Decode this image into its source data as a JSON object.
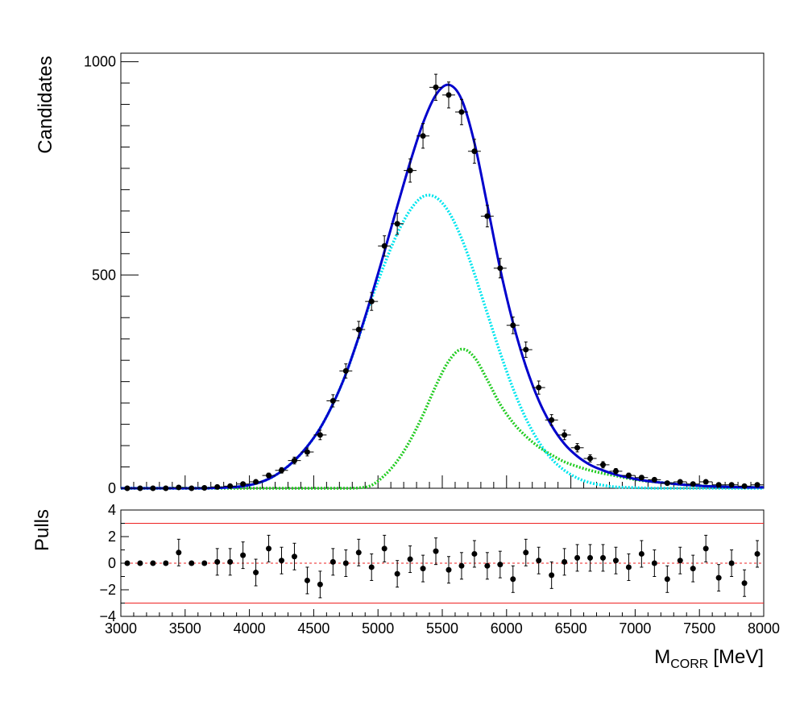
{
  "chart_data": [
    {
      "type": "scatter",
      "panel": "main",
      "ylabel": "Candidates",
      "xlim": [
        3000,
        8000
      ],
      "ylim": [
        0,
        1020
      ],
      "y_ticks": [
        0,
        500,
        1000
      ],
      "bin_width": 100,
      "x": [
        3050,
        3150,
        3250,
        3350,
        3450,
        3550,
        3650,
        3750,
        3850,
        3950,
        4050,
        4150,
        4250,
        4350,
        4450,
        4550,
        4650,
        4750,
        4850,
        4950,
        5050,
        5150,
        5250,
        5350,
        5450,
        5550,
        5650,
        5750,
        5850,
        5950,
        6050,
        6150,
        6250,
        6350,
        6450,
        6550,
        6650,
        6750,
        6850,
        6950,
        7050,
        7150,
        7250,
        7350,
        7450,
        7550,
        7650,
        7750,
        7850,
        7950
      ],
      "series": [
        {
          "name": "",
          "color": "#000000",
          "kind": "points_with_errors",
          "values": [
            0,
            0,
            0,
            0,
            2,
            0,
            1,
            3,
            5,
            10,
            15,
            30,
            42,
            65,
            85,
            125,
            205,
            275,
            372,
            438,
            568,
            620,
            745,
            826,
            940,
            922,
            882,
            790,
            638,
            516,
            382,
            325,
            236,
            160,
            125,
            95,
            70,
            55,
            40,
            30,
            25,
            20,
            12,
            15,
            10,
            15,
            8,
            8,
            5,
            8
          ]
        },
        {
          "name": "",
          "color": "#0000cc",
          "kind": "total_fit_curve",
          "values": [
            0,
            0,
            0,
            0,
            0,
            0,
            0,
            1,
            2,
            5,
            11,
            22,
            40,
            65,
            98,
            141,
            198,
            268,
            355,
            451,
            555,
            661,
            764,
            856,
            922,
            946,
            912,
            810,
            664,
            515,
            388,
            286,
            206,
            147,
            104,
            75,
            55,
            42,
            32,
            25,
            19,
            15,
            12,
            9,
            7,
            5,
            4,
            3,
            2,
            2
          ]
        },
        {
          "name": "",
          "color": "#00e5ee",
          "kind": "component_curve",
          "values": [
            0,
            0,
            0,
            0,
            0,
            0,
            0,
            1,
            2,
            5,
            11,
            22,
            40,
            65,
            98,
            141,
            198,
            268,
            354,
            444,
            525,
            597,
            652,
            684,
            682,
            648,
            586,
            503,
            410,
            318,
            234,
            164,
            109,
            69,
            42,
            24,
            13,
            7,
            3,
            2,
            1,
            0,
            0,
            0,
            0,
            0,
            0,
            0,
            0,
            0
          ]
        },
        {
          "name": "",
          "color": "#22cc22",
          "kind": "component_curve",
          "values": [
            0,
            0,
            0,
            0,
            0,
            0,
            0,
            0,
            0,
            0,
            0,
            0,
            0,
            0,
            0,
            0,
            0,
            0,
            1,
            7,
            30,
            64,
            112,
            172,
            240,
            298,
            326,
            307,
            254,
            197,
            154,
            122,
            97,
            78,
            62,
            51,
            42,
            35,
            29,
            23,
            18,
            15,
            12,
            9,
            7,
            5,
            4,
            3,
            2,
            2
          ]
        }
      ]
    },
    {
      "type": "scatter",
      "panel": "pulls",
      "ylabel": "Pulls",
      "xlabel_main": "M",
      "xlabel_sub": "CORR",
      "xlabel_unit": "[MeV]",
      "xlim": [
        3000,
        8000
      ],
      "ylim": [
        -4,
        4
      ],
      "y_ticks": [
        -4,
        -2,
        0,
        2,
        4
      ],
      "x_ticks": [
        3000,
        3500,
        4000,
        4500,
        5000,
        5500,
        6000,
        6500,
        7000,
        7500,
        8000
      ],
      "reference_lines": [
        {
          "y": 3,
          "color": "#ee2222",
          "style": "solid"
        },
        {
          "y": -3,
          "color": "#ee2222",
          "style": "solid"
        },
        {
          "y": 0,
          "color": "#ee2222",
          "style": "dashed"
        }
      ],
      "x": [
        3050,
        3150,
        3250,
        3350,
        3450,
        3550,
        3650,
        3750,
        3850,
        3950,
        4050,
        4150,
        4250,
        4350,
        4450,
        4550,
        4650,
        4750,
        4850,
        4950,
        5050,
        5150,
        5250,
        5350,
        5450,
        5550,
        5650,
        5750,
        5850,
        5950,
        6050,
        6150,
        6250,
        6350,
        6450,
        6550,
        6650,
        6750,
        6850,
        6950,
        7050,
        7150,
        7250,
        7350,
        7450,
        7550,
        7650,
        7750,
        7850,
        7950
      ],
      "values": [
        0.0,
        0.0,
        0.0,
        0.0,
        0.8,
        0.0,
        0.0,
        0.1,
        0.1,
        0.6,
        -0.7,
        1.1,
        0.2,
        0.5,
        -1.3,
        -1.6,
        0.1,
        0.0,
        0.8,
        -0.3,
        1.1,
        -0.8,
        0.3,
        -0.4,
        0.9,
        -0.5,
        -0.2,
        0.7,
        -0.2,
        -0.1,
        -1.2,
        0.8,
        0.2,
        -0.9,
        0.1,
        0.4,
        0.4,
        0.4,
        0.2,
        -0.3,
        0.7,
        0.0,
        -1.2,
        0.2,
        -0.4,
        1.1,
        -1.1,
        0.0,
        -1.5,
        0.7
      ],
      "errors": [
        0,
        0,
        0,
        0,
        1,
        0,
        0,
        1,
        1,
        1,
        1,
        1,
        1,
        1,
        1,
        1,
        1,
        1,
        1,
        1,
        1,
        1,
        1,
        1,
        1,
        1,
        1,
        1,
        1,
        1,
        1,
        1,
        1,
        1,
        1,
        1,
        1,
        1,
        1,
        1,
        1,
        1,
        1,
        1,
        1,
        1,
        1,
        1,
        1,
        1
      ]
    }
  ]
}
